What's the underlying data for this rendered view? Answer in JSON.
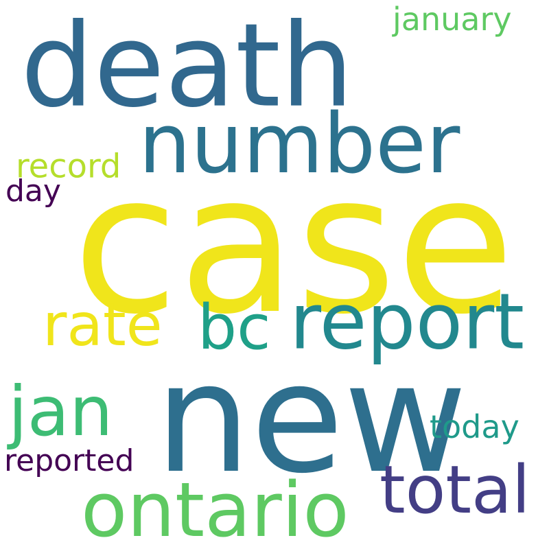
{
  "words": [
    {
      "text": "death",
      "color": "#31688e"
    },
    {
      "text": "january",
      "color": "#5ec962"
    },
    {
      "text": "number",
      "color": "#2c728e"
    },
    {
      "text": "record",
      "color": "#b5de2b"
    },
    {
      "text": "day",
      "color": "#440154"
    },
    {
      "text": "case",
      "color": "#f0e51b"
    },
    {
      "text": "rate",
      "color": "#f0e51b"
    },
    {
      "text": "bc",
      "color": "#1fa088"
    },
    {
      "text": "report",
      "color": "#22888e"
    },
    {
      "text": "jan",
      "color": "#3dbc74"
    },
    {
      "text": "new",
      "color": "#2e6f8e"
    },
    {
      "text": "today",
      "color": "#1f9a8a"
    },
    {
      "text": "reported",
      "color": "#440154"
    },
    {
      "text": "total",
      "color": "#433e85"
    },
    {
      "text": "ontario",
      "color": "#5ec962"
    }
  ]
}
